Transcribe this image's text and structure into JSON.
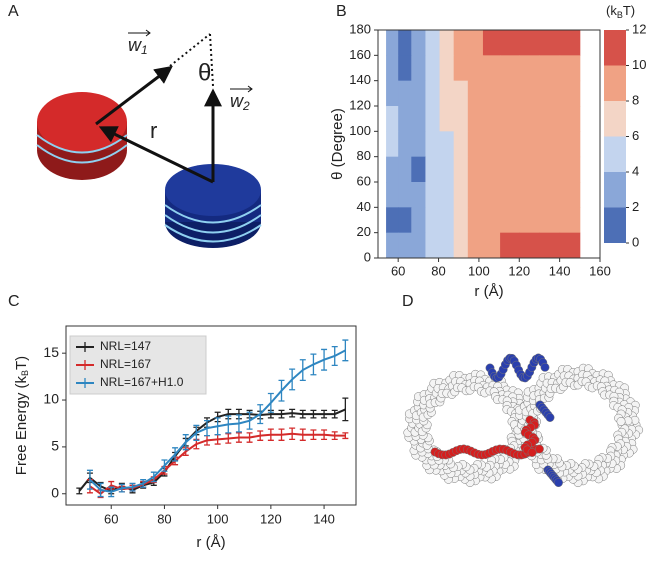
{
  "panels": {
    "labels": [
      "A",
      "B",
      "C",
      "D"
    ]
  },
  "diagram": {
    "angle": "θ",
    "distance": "r",
    "w1": {
      "base": "w",
      "sub": "1"
    },
    "w2": {
      "base": "w",
      "sub": "2"
    }
  },
  "chart_data": [
    {
      "type": "contour",
      "xlabel": "r (Å)",
      "ylabel": "θ (Degree)",
      "colorbar_label": [
        "(k",
        "B",
        "T)"
      ],
      "x": [
        57,
        63,
        70,
        77,
        84,
        91,
        98,
        106,
        115,
        125,
        135,
        145
      ],
      "y": [
        170,
        150,
        130,
        110,
        90,
        70,
        50,
        30,
        10
      ],
      "z": [
        [
          3,
          1.5,
          2.5,
          4.5,
          6.5,
          8.5,
          9,
          10.5,
          10.5,
          10.5,
          10.5,
          10.5
        ],
        [
          3,
          1.5,
          3,
          4.5,
          6.5,
          8,
          9,
          9,
          9,
          9,
          9,
          9
        ],
        [
          3.5,
          2.5,
          3.5,
          5,
          6.5,
          7.5,
          9,
          9,
          9,
          9,
          9,
          9
        ],
        [
          4.5,
          3.5,
          3.5,
          5,
          6,
          7,
          9,
          9,
          9,
          9,
          9,
          9
        ],
        [
          4.5,
          3.5,
          2,
          4.5,
          5.5,
          7,
          9,
          9,
          9,
          9,
          9,
          9
        ],
        [
          3.5,
          3,
          1.5,
          4,
          5.5,
          7,
          9,
          9,
          9,
          9,
          9,
          9
        ],
        [
          2.5,
          2,
          2.5,
          4,
          5,
          7,
          9,
          9,
          9,
          9,
          9,
          9
        ],
        [
          1.5,
          1,
          2.5,
          4,
          5,
          7,
          8.5,
          9,
          9,
          9,
          9,
          9
        ],
        [
          2.5,
          3,
          3.5,
          4.5,
          5.5,
          7,
          8.5,
          9,
          10.5,
          10.5,
          10.5,
          10.5
        ]
      ],
      "levels": [
        0,
        2,
        4,
        6,
        8,
        10,
        12
      ],
      "colors": [
        "#4d6fb6",
        "#8aa7d8",
        "#c3d4ee",
        "#f3d5c6",
        "#f0a284",
        "#d6524a"
      ],
      "xlim": [
        50,
        160
      ],
      "xticks": [
        60,
        80,
        100,
        120,
        140,
        160
      ],
      "ylim": [
        0,
        180
      ],
      "yticks": [
        0,
        20,
        40,
        60,
        80,
        100,
        120,
        140,
        160,
        180
      ]
    },
    {
      "type": "line",
      "xlabel": "r (Å)",
      "ylabel": [
        "Free Energy (k",
        "B",
        "T)"
      ],
      "x": [
        48,
        52,
        56,
        60,
        64,
        68,
        72,
        76,
        80,
        84,
        88,
        92,
        96,
        100,
        104,
        108,
        112,
        116,
        120,
        124,
        128,
        132,
        136,
        140,
        144,
        148
      ],
      "series": [
        {
          "name": "NRL=147",
          "color": "#222222",
          "values": [
            0.3,
            1.7,
            0.8,
            0.3,
            0.8,
            0.4,
            0.9,
            1.2,
            2.3,
            4.0,
            5.5,
            6.7,
            7.6,
            8.2,
            8.5,
            8.5,
            8.5,
            8.4,
            8.5,
            8.5,
            8.6,
            8.5,
            8.5,
            8.5,
            8.5,
            9.0
          ],
          "errors": [
            0.3,
            0.5,
            0.4,
            0.3,
            0.3,
            0.3,
            0.3,
            0.3,
            0.4,
            0.4,
            0.4,
            0.4,
            0.5,
            0.5,
            0.5,
            0.5,
            0.4,
            0.4,
            0.4,
            0.4,
            0.4,
            0.4,
            0.4,
            0.4,
            0.4,
            1.2
          ]
        },
        {
          "name": "NRL=167",
          "color": "#d42a2a",
          "values": [
            null,
            0.8,
            0.0,
            0.9,
            0.5,
            0.6,
            1.0,
            1.5,
            2.5,
            3.5,
            4.5,
            5.3,
            5.7,
            5.8,
            5.9,
            6.0,
            6.0,
            6.2,
            6.3,
            6.3,
            6.4,
            6.3,
            6.3,
            6.3,
            6.2,
            6.2
          ],
          "errors": [
            null,
            0.7,
            0.4,
            0.4,
            0.3,
            0.3,
            0.3,
            0.3,
            0.4,
            0.4,
            0.4,
            0.5,
            0.5,
            0.5,
            0.5,
            0.5,
            0.5,
            0.5,
            0.6,
            0.6,
            0.6,
            0.6,
            0.5,
            0.5,
            0.4,
            0.3
          ]
        },
        {
          "name": "NRL=167+H1.0",
          "color": "#2e86c1",
          "values": [
            null,
            1.5,
            0.4,
            0.2,
            0.6,
            0.7,
            1.1,
            1.8,
            3.0,
            4.2,
            5.5,
            6.5,
            7.0,
            7.2,
            7.4,
            7.5,
            7.8,
            8.5,
            9.7,
            11.0,
            12.2,
            13.2,
            13.8,
            14.3,
            14.7,
            15.3
          ],
          "errors": [
            null,
            1.0,
            0.7,
            0.5,
            0.4,
            0.4,
            0.4,
            0.5,
            0.6,
            0.7,
            0.8,
            0.8,
            0.8,
            0.9,
            0.9,
            0.9,
            0.9,
            1.0,
            1.0,
            1.1,
            1.1,
            1.1,
            1.1,
            1.1,
            1.0,
            1.1
          ]
        }
      ],
      "legend": "upper left",
      "xlim": [
        43,
        152
      ],
      "xticks": [
        60,
        80,
        100,
        120,
        140
      ],
      "ylim": [
        -1.2,
        17.9
      ],
      "yticks": [
        0,
        5,
        10,
        15
      ]
    }
  ]
}
